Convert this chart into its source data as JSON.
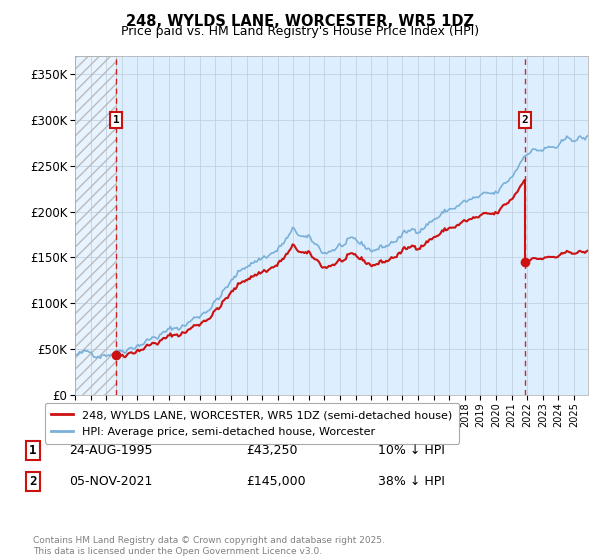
{
  "title": "248, WYLDS LANE, WORCESTER, WR5 1DZ",
  "subtitle": "Price paid vs. HM Land Registry's House Price Index (HPI)",
  "ylim": [
    0,
    370000
  ],
  "yticks": [
    0,
    50000,
    100000,
    150000,
    200000,
    250000,
    300000,
    350000
  ],
  "ytick_labels": [
    "£0",
    "£50K",
    "£100K",
    "£150K",
    "£200K",
    "£250K",
    "£300K",
    "£350K"
  ],
  "xlim_start": 1993.0,
  "xlim_end": 2025.9,
  "t1_year": 1995.646,
  "t1_price": 43250,
  "t2_year": 2021.843,
  "t2_price": 145000,
  "hpi_color": "#7ab0d8",
  "price_color": "#cc1111",
  "vline_color": "#cc1111",
  "bg_color": "#ddeeff",
  "plot_bg_color": "#ddeeff",
  "legend_label1": "248, WYLDS LANE, WORCESTER, WR5 1DZ (semi-detached house)",
  "legend_label2": "HPI: Average price, semi-detached house, Worcester",
  "table_data": [
    {
      "num": "1",
      "date": "24-AUG-1995",
      "price": "£43,250",
      "hpi": "10% ↓ HPI"
    },
    {
      "num": "2",
      "date": "05-NOV-2021",
      "price": "£145,000",
      "hpi": "38% ↓ HPI"
    }
  ],
  "footer": "Contains HM Land Registry data © Crown copyright and database right 2025.\nThis data is licensed under the Open Government Licence v3.0.",
  "grid_color": "#bbccdd",
  "ann1_y": 300000,
  "ann2_y": 300000
}
